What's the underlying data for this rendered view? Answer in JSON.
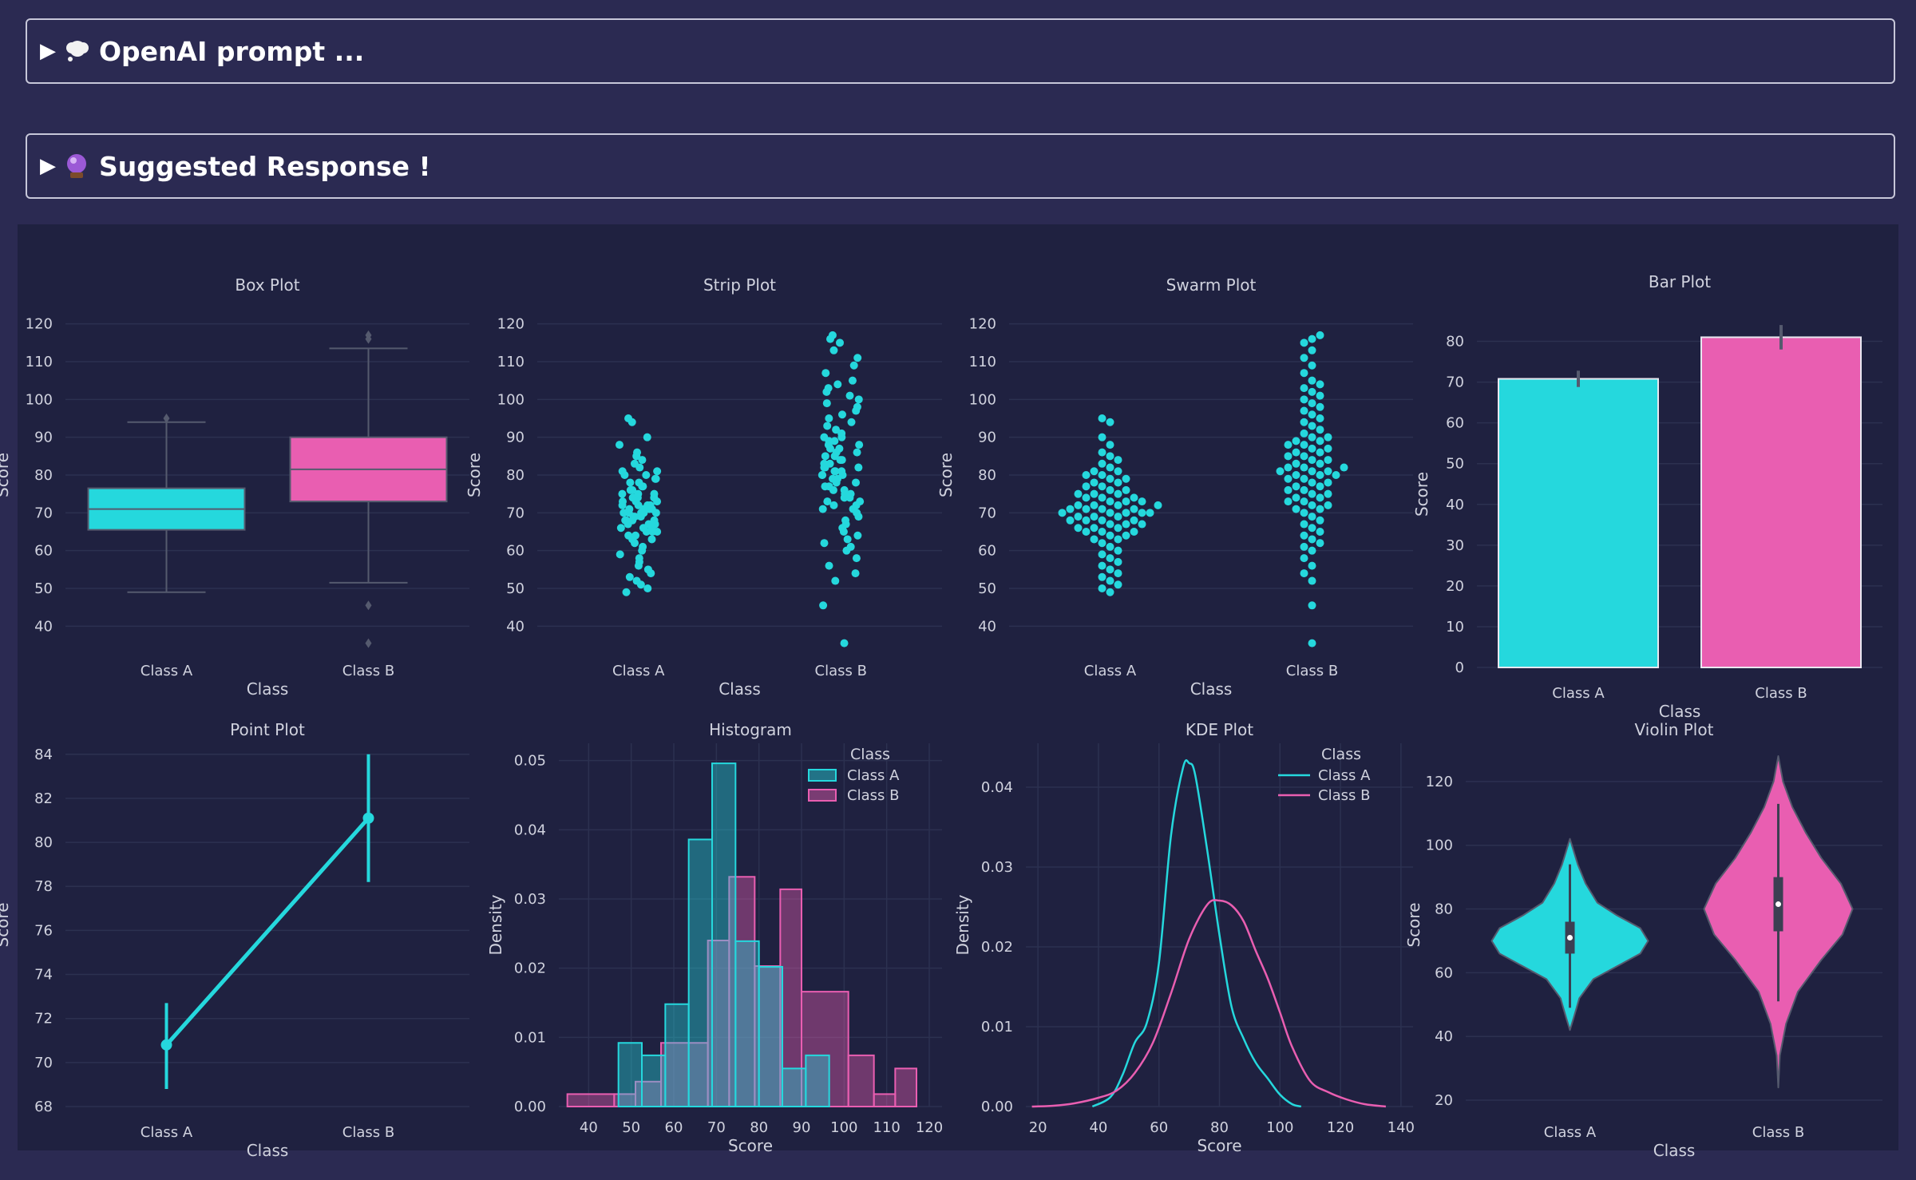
{
  "accordions": [
    {
      "label": "OpenAI prompt ...",
      "icon": "thought-bubble-icon"
    },
    {
      "label": "Suggested Response !",
      "icon": "crystal-ball-icon"
    }
  ],
  "colors": {
    "class_a": "#25d8dd",
    "class_b": "#e95eb1",
    "axis_text": "#d0d2de",
    "grid": "#2c3150",
    "panel": "#1f2140",
    "page": "#2b2a52"
  },
  "chart_data": [
    {
      "type": "box",
      "title": "Box Plot",
      "xlabel": "Class",
      "ylabel": "Score",
      "categories": [
        "Class A",
        "Class B"
      ],
      "ylim": [
        35,
        125
      ],
      "yticks": [
        40,
        50,
        60,
        70,
        80,
        90,
        100,
        110,
        120
      ],
      "boxes": [
        {
          "name": "Class A",
          "whisker_low": 49,
          "q1": 65.5,
          "median": 71,
          "q3": 76.5,
          "whisker_high": 94,
          "outliers": [
            95
          ]
        },
        {
          "name": "Class B",
          "whisker_low": 51.5,
          "q1": 73,
          "median": 81.5,
          "q3": 90,
          "whisker_high": 113.5,
          "outliers": [
            117,
            116,
            45.5,
            35.5
          ]
        }
      ]
    },
    {
      "type": "scatter",
      "title": "Strip Plot",
      "xlabel": "Class",
      "ylabel": "Score",
      "categories": [
        "Class A",
        "Class B"
      ],
      "ylim": [
        35,
        125
      ],
      "yticks": [
        40,
        50,
        60,
        70,
        80,
        90,
        100,
        110,
        120
      ],
      "series": [
        {
          "name": "Class A",
          "values": [
            49,
            50,
            51,
            52,
            53,
            54,
            55,
            56,
            57,
            58,
            59,
            60,
            61,
            62,
            63,
            63,
            64,
            64,
            65,
            65,
            65,
            66,
            66,
            66,
            67,
            67,
            67,
            68,
            68,
            68,
            68,
            69,
            69,
            69,
            70,
            70,
            70,
            70,
            70,
            71,
            71,
            71,
            71,
            72,
            72,
            72,
            72,
            73,
            73,
            73,
            74,
            74,
            74,
            75,
            75,
            75,
            76,
            76,
            77,
            77,
            78,
            78,
            79,
            79,
            80,
            80,
            81,
            81,
            82,
            83,
            84,
            85,
            86,
            88,
            90,
            94,
            95
          ]
        },
        {
          "name": "Class B",
          "values": [
            35.5,
            45.5,
            52,
            54,
            56,
            58,
            60,
            61,
            62,
            63,
            64,
            65,
            66,
            67,
            68,
            69,
            70,
            71,
            71,
            72,
            72,
            73,
            73,
            74,
            74,
            75,
            75,
            76,
            76,
            77,
            77,
            78,
            78,
            79,
            79,
            80,
            80,
            80,
            81,
            81,
            81,
            82,
            82,
            82,
            83,
            83,
            84,
            84,
            85,
            85,
            86,
            86,
            87,
            87,
            88,
            88,
            89,
            89,
            90,
            90,
            91,
            92,
            93,
            94,
            95,
            96,
            97,
            98,
            99,
            100,
            101,
            102,
            103,
            104,
            105,
            107,
            109,
            111,
            113,
            115,
            116,
            117
          ]
        }
      ]
    },
    {
      "type": "scatter",
      "title": "Swarm Plot",
      "xlabel": "Class",
      "ylabel": "Score",
      "categories": [
        "Class A",
        "Class B"
      ],
      "ylim": [
        35,
        125
      ],
      "yticks": [
        40,
        50,
        60,
        70,
        80,
        90,
        100,
        110,
        120
      ],
      "series": [
        {
          "name": "Class A",
          "values": [
            49,
            50,
            51,
            52,
            53,
            54,
            55,
            56,
            57,
            58,
            59,
            60,
            61,
            62,
            63,
            63,
            64,
            64,
            65,
            65,
            65,
            66,
            66,
            66,
            67,
            67,
            67,
            68,
            68,
            68,
            68,
            69,
            69,
            69,
            70,
            70,
            70,
            70,
            70,
            71,
            71,
            71,
            71,
            72,
            72,
            72,
            72,
            73,
            73,
            73,
            74,
            74,
            74,
            75,
            75,
            75,
            76,
            76,
            77,
            77,
            78,
            78,
            79,
            79,
            80,
            80,
            81,
            81,
            82,
            83,
            84,
            85,
            86,
            88,
            90,
            94,
            95
          ]
        },
        {
          "name": "Class B",
          "values": [
            35.5,
            45.5,
            52,
            54,
            56,
            58,
            60,
            61,
            62,
            63,
            64,
            65,
            66,
            67,
            68,
            69,
            70,
            71,
            71,
            72,
            72,
            73,
            73,
            74,
            74,
            75,
            75,
            76,
            76,
            77,
            77,
            78,
            78,
            79,
            79,
            80,
            80,
            80,
            81,
            81,
            81,
            82,
            82,
            82,
            83,
            83,
            84,
            84,
            85,
            85,
            86,
            86,
            87,
            87,
            88,
            88,
            89,
            89,
            90,
            90,
            91,
            92,
            93,
            94,
            95,
            96,
            97,
            98,
            99,
            100,
            101,
            102,
            103,
            104,
            105,
            107,
            109,
            111,
            113,
            115,
            116,
            117
          ]
        }
      ]
    },
    {
      "type": "bar",
      "title": "Bar Plot",
      "xlabel": "Class",
      "ylabel": "Score",
      "categories": [
        "Class A",
        "Class B"
      ],
      "values": [
        70.8,
        81
      ],
      "err_low": [
        68.8,
        78
      ],
      "err_high": [
        72.8,
        84
      ],
      "ylim": [
        0,
        85
      ],
      "yticks": [
        0,
        10,
        20,
        30,
        40,
        50,
        60,
        70,
        80
      ]
    },
    {
      "type": "line",
      "title": "Point Plot",
      "xlabel": "Class",
      "ylabel": "Score",
      "categories": [
        "Class A",
        "Class B"
      ],
      "values": [
        70.8,
        81.1
      ],
      "err_low": [
        68.8,
        78.2
      ],
      "err_high": [
        72.7,
        84
      ],
      "ylim": [
        68,
        84.5
      ],
      "yticks": [
        68,
        70,
        72,
        74,
        76,
        78,
        80,
        82,
        84
      ]
    },
    {
      "type": "histogram",
      "title": "Histogram",
      "xlabel": "Score",
      "ylabel": "Density",
      "xlim": [
        33,
        123
      ],
      "ylim": [
        0,
        0.0525
      ],
      "xticks": [
        40,
        50,
        60,
        70,
        80,
        90,
        100,
        110,
        120
      ],
      "yticks": [
        0.0,
        0.01,
        0.02,
        0.03,
        0.04,
        0.05
      ],
      "legend_title": "Class",
      "legend_position": "top-right",
      "series": [
        {
          "name": "Class A",
          "bins": [
            [
              47,
              52.5,
              0.0092
            ],
            [
              52.5,
              58,
              0.0074
            ],
            [
              58,
              63.5,
              0.0148
            ],
            [
              63.5,
              69,
              0.0386
            ],
            [
              69,
              74.5,
              0.0496
            ],
            [
              74.5,
              80,
              0.0239
            ],
            [
              80,
              85.5,
              0.0202
            ],
            [
              85.5,
              91,
              0.0055
            ],
            [
              91,
              96.5,
              0.0074
            ]
          ]
        },
        {
          "name": "Class B",
          "bins": [
            [
              35,
              46,
              0.0018
            ],
            [
              46,
              51,
              0.0018
            ],
            [
              51,
              57,
              0.0036
            ],
            [
              57,
              68,
              0.0092
            ],
            [
              68,
              73,
              0.024
            ],
            [
              73,
              79,
              0.0332
            ],
            [
              79,
              85,
              0.0203
            ],
            [
              85,
              90,
              0.0314
            ],
            [
              90,
              101,
              0.0166
            ],
            [
              101,
              107,
              0.0074
            ],
            [
              107,
              112,
              0.0018
            ],
            [
              112,
              117,
              0.0055
            ]
          ]
        }
      ]
    },
    {
      "type": "line",
      "title": "KDE Plot",
      "xlabel": "Score",
      "ylabel": "Density",
      "xlim": [
        16,
        144
      ],
      "ylim": [
        0,
        0.0455
      ],
      "xticks": [
        20,
        40,
        60,
        80,
        100,
        120,
        140
      ],
      "yticks": [
        0.0,
        0.01,
        0.02,
        0.03,
        0.04
      ],
      "legend_title": "Class",
      "legend_position": "top-right",
      "series": [
        {
          "name": "Class A",
          "x": [
            38,
            44,
            48,
            52,
            56,
            60,
            64,
            68,
            70,
            72,
            76,
            80,
            84,
            88,
            92,
            96,
            100,
            104,
            107
          ],
          "y": [
            0.0,
            0.0012,
            0.004,
            0.008,
            0.0105,
            0.018,
            0.034,
            0.0425,
            0.043,
            0.0415,
            0.032,
            0.0215,
            0.0125,
            0.0085,
            0.0055,
            0.0035,
            0.0015,
            0.0003,
            0.0
          ]
        },
        {
          "name": "Class B",
          "x": [
            18,
            25,
            32,
            40,
            46,
            52,
            58,
            64,
            70,
            76,
            80,
            84,
            88,
            92,
            96,
            100,
            104,
            110,
            116,
            122,
            128,
            135
          ],
          "y": [
            0.0,
            0.0001,
            0.0004,
            0.0011,
            0.002,
            0.0042,
            0.008,
            0.0142,
            0.021,
            0.0253,
            0.0258,
            0.0252,
            0.0232,
            0.0195,
            0.016,
            0.0118,
            0.0075,
            0.0032,
            0.0018,
            0.0009,
            0.0003,
            0.0
          ]
        }
      ]
    },
    {
      "type": "violin",
      "title": "Violin Plot",
      "xlabel": "Class",
      "ylabel": "Score",
      "categories": [
        "Class A",
        "Class B"
      ],
      "ylim": [
        18,
        132
      ],
      "yticks": [
        20,
        40,
        60,
        80,
        100,
        120
      ],
      "violins": [
        {
          "name": "Class A",
          "profile": [
            [
              42,
              0.0
            ],
            [
              46,
              0.05
            ],
            [
              52,
              0.12
            ],
            [
              58,
              0.3
            ],
            [
              62,
              0.6
            ],
            [
              66,
              0.9
            ],
            [
              70,
              1.0
            ],
            [
              74,
              0.9
            ],
            [
              78,
              0.6
            ],
            [
              82,
              0.35
            ],
            [
              88,
              0.2
            ],
            [
              94,
              0.1
            ],
            [
              98,
              0.05
            ],
            [
              102,
              0.0
            ]
          ],
          "q1": 66,
          "median": 71,
          "q3": 76,
          "whisker_low": 49,
          "whisker_high": 94
        },
        {
          "name": "Class B",
          "profile": [
            [
              24,
              0.0
            ],
            [
              34,
              0.02
            ],
            [
              44,
              0.1
            ],
            [
              54,
              0.25
            ],
            [
              64,
              0.55
            ],
            [
              72,
              0.82
            ],
            [
              80,
              0.95
            ],
            [
              88,
              0.8
            ],
            [
              96,
              0.55
            ],
            [
              104,
              0.35
            ],
            [
              112,
              0.18
            ],
            [
              120,
              0.06
            ],
            [
              128,
              0.0
            ]
          ],
          "q1": 73,
          "median": 81.5,
          "q3": 90,
          "whisker_low": 51,
          "whisker_high": 113
        }
      ]
    }
  ]
}
